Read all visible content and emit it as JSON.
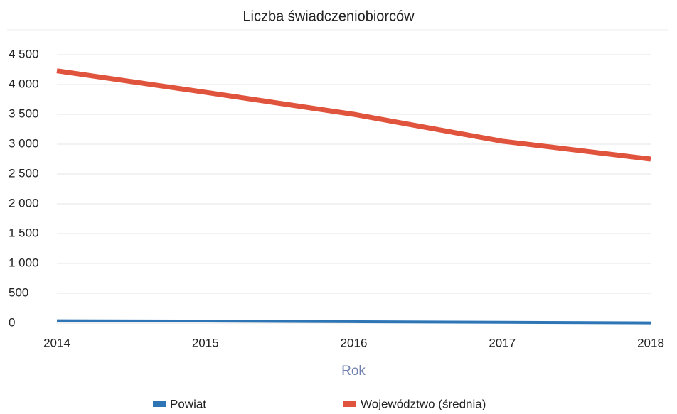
{
  "chart_data": {
    "type": "line",
    "title": "Liczba świadczeniobiorców",
    "x_label": "Rok",
    "categories": [
      "2014",
      "2015",
      "2016",
      "2017",
      "2018"
    ],
    "series": [
      {
        "name": "Powiat",
        "color": "#2e75b6",
        "values": [
          40,
          35,
          25,
          15,
          5
        ]
      },
      {
        "name": "Województwo (średnia)",
        "color": "#e0533c",
        "values": [
          4230,
          3870,
          3500,
          3050,
          2750
        ]
      }
    ],
    "ylim": [
      0,
      4500
    ],
    "yticks": [
      0,
      500,
      {
        "value": 1000,
        "label": "1 000"
      },
      {
        "value": 1500,
        "label": "1 500"
      },
      {
        "value": 2000,
        "label": "2 000"
      },
      {
        "value": 2500,
        "label": "2 500"
      },
      {
        "value": 3000,
        "label": "3 000"
      },
      {
        "value": 3500,
        "label": "3 500"
      },
      {
        "value": 4000,
        "label": "4 000"
      },
      {
        "value": 4500,
        "label": "4 500"
      }
    ],
    "grid": true,
    "legend": "bottom"
  }
}
